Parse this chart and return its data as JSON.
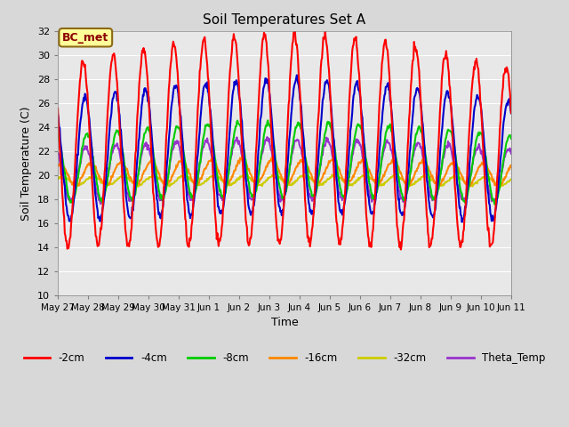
{
  "title": "Soil Temperatures Set A",
  "xlabel": "Time",
  "ylabel": "Soil Temperature (C)",
  "ylim": [
    10,
    32
  ],
  "fig_facecolor": "#d8d8d8",
  "ax_facecolor": "#e8e8e8",
  "annotation_text": "BC_met",
  "annotation_box_color": "#ffff99",
  "annotation_border_color": "#8b6914",
  "annotation_text_color": "#8b0000",
  "series": {
    "-2cm": {
      "color": "#ff0000",
      "lw": 1.5
    },
    "-4cm": {
      "color": "#0000cc",
      "lw": 1.5
    },
    "-8cm": {
      "color": "#00cc00",
      "lw": 1.5
    },
    "-16cm": {
      "color": "#ff8800",
      "lw": 1.5
    },
    "-32cm": {
      "color": "#cccc00",
      "lw": 1.5
    },
    "Theta_Temp": {
      "color": "#9933cc",
      "lw": 1.5
    }
  },
  "xtick_labels": [
    "May 27",
    "May 28",
    "May 29",
    "May 30",
    "May 31",
    "Jun 1",
    "Jun 2",
    "Jun 3",
    "Jun 4",
    "Jun 5",
    "Jun 6",
    "Jun 7",
    "Jun 8",
    "Jun 9",
    "Jun 10",
    "Jun 11"
  ],
  "ytick_labels": [
    10,
    12,
    14,
    16,
    18,
    20,
    22,
    24,
    26,
    28,
    30,
    32
  ],
  "legend_order": [
    "-2cm",
    "-4cm",
    "-8cm",
    "-16cm",
    "-32cm",
    "Theta_Temp"
  ],
  "grid_color": "#ffffff",
  "grid_lw": 0.8
}
